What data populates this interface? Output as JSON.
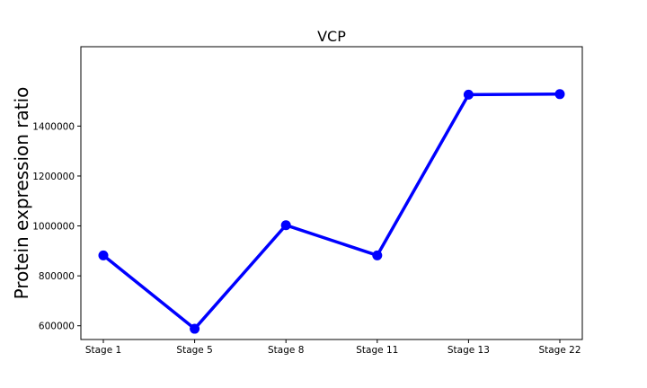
{
  "chart_data": {
    "type": "line",
    "title": "VCP",
    "xlabel": "",
    "ylabel": "Protein expression ratio",
    "categories": [
      "Stage 1",
      "Stage 5",
      "Stage 8",
      "Stage 11",
      "Stage 13",
      "Stage 22"
    ],
    "series": [
      {
        "values": [
          882000,
          588000,
          1003000,
          882000,
          1526000,
          1528000
        ]
      }
    ],
    "ylim": [
      545000,
      1718000
    ],
    "yticks": [
      600000,
      800000,
      1000000,
      1200000,
      1400000
    ],
    "ytick_labels": [
      "600000",
      "800000",
      "1000000",
      "1200000",
      "1400000"
    ],
    "grid": false,
    "legend": "none",
    "colors": {
      "line": "#0000ff",
      "marker": "#0000ff",
      "axes": "#000000"
    }
  }
}
